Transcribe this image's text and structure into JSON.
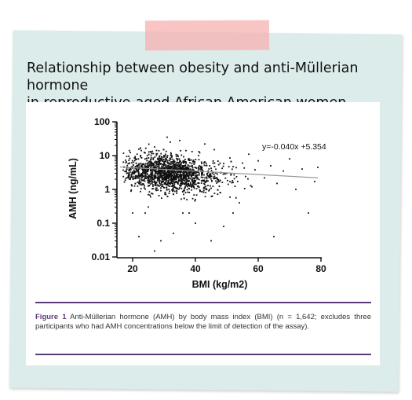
{
  "headline": {
    "line1": "Relationship between obesity and anti-Müllerian hormone",
    "line2": "in reproductive-aged African American women."
  },
  "caption": {
    "label": "Figure 1",
    "text": "Anti-Müllerian hormone (AMH) by body mass index (BMI) (n = 1,642; excludes three participants who had AMH concentrations below the limit of detection of the assay)."
  },
  "colors": {
    "panel": "#dcecea",
    "tape": "#f7b0b0",
    "accent": "#5b3a78",
    "points": "#111111",
    "fit_line": "#9a9a9a"
  },
  "chart_data": {
    "type": "scatter",
    "xlabel": "BMI (kg/m2)",
    "ylabel": "AMH (ng/mL)",
    "xlim": [
      15,
      80
    ],
    "ylim": [
      0.01,
      100
    ],
    "yscale": "log",
    "xticks": [
      "20",
      "40",
      "60",
      "80"
    ],
    "yticks": [
      "0.01",
      "0.1",
      "1",
      "10",
      "100"
    ],
    "grid": false,
    "annotation": "y=-0.040x +5.354",
    "fit_line": {
      "x": [
        16,
        79
      ],
      "y": [
        4.6,
        2.2
      ]
    },
    "sample_size": 1642,
    "points": [
      [
        18,
        3.5
      ],
      [
        19,
        6
      ],
      [
        20,
        2.2
      ],
      [
        21,
        8
      ],
      [
        22,
        1.5
      ],
      [
        23,
        4.5
      ],
      [
        24,
        12
      ],
      [
        25,
        0.7
      ],
      [
        26,
        3
      ],
      [
        27,
        18
      ],
      [
        28,
        5.5
      ],
      [
        29,
        1.1
      ],
      [
        30,
        9
      ],
      [
        31,
        2.6
      ],
      [
        32,
        25
      ],
      [
        33,
        4
      ],
      [
        34,
        0.9
      ],
      [
        35,
        7
      ],
      [
        36,
        3.2
      ],
      [
        37,
        14
      ],
      [
        38,
        1.8
      ],
      [
        39,
        5
      ],
      [
        40,
        0.5
      ],
      [
        41,
        10
      ],
      [
        42,
        2.8
      ],
      [
        43,
        6.5
      ],
      [
        44,
        1.3
      ],
      [
        45,
        4.2
      ],
      [
        46,
        15
      ],
      [
        47,
        2
      ],
      [
        48,
        0.8
      ],
      [
        49,
        5.8
      ],
      [
        50,
        3
      ],
      [
        51,
        8.5
      ],
      [
        52,
        1.6
      ],
      [
        53,
        4.4
      ],
      [
        54,
        0.4
      ],
      [
        55,
        6
      ],
      [
        56,
        2.4
      ],
      [
        57,
        11
      ],
      [
        58,
        1.2
      ],
      [
        59,
        3.8
      ],
      [
        60,
        7
      ],
      [
        62,
        2.2
      ],
      [
        64,
        5
      ],
      [
        66,
        1.5
      ],
      [
        68,
        3.5
      ],
      [
        70,
        8
      ],
      [
        72,
        1
      ],
      [
        74,
        4
      ],
      [
        76,
        0.2
      ],
      [
        78,
        1.7
      ],
      [
        79,
        4.5
      ],
      [
        20,
        0.2
      ],
      [
        22,
        0.04
      ],
      [
        25,
        0.3
      ],
      [
        27,
        0.015
      ],
      [
        33,
        0.05
      ],
      [
        38,
        0.2
      ],
      [
        45,
        0.03
      ],
      [
        49,
        0.08
      ],
      [
        65,
        0.04
      ],
      [
        24,
        0.2
      ],
      [
        29,
        0.03
      ],
      [
        36,
        0.2
      ],
      [
        40,
        0.1
      ],
      [
        52,
        0.2
      ],
      [
        31,
        35
      ],
      [
        35,
        28
      ],
      [
        43,
        22
      ]
    ]
  }
}
